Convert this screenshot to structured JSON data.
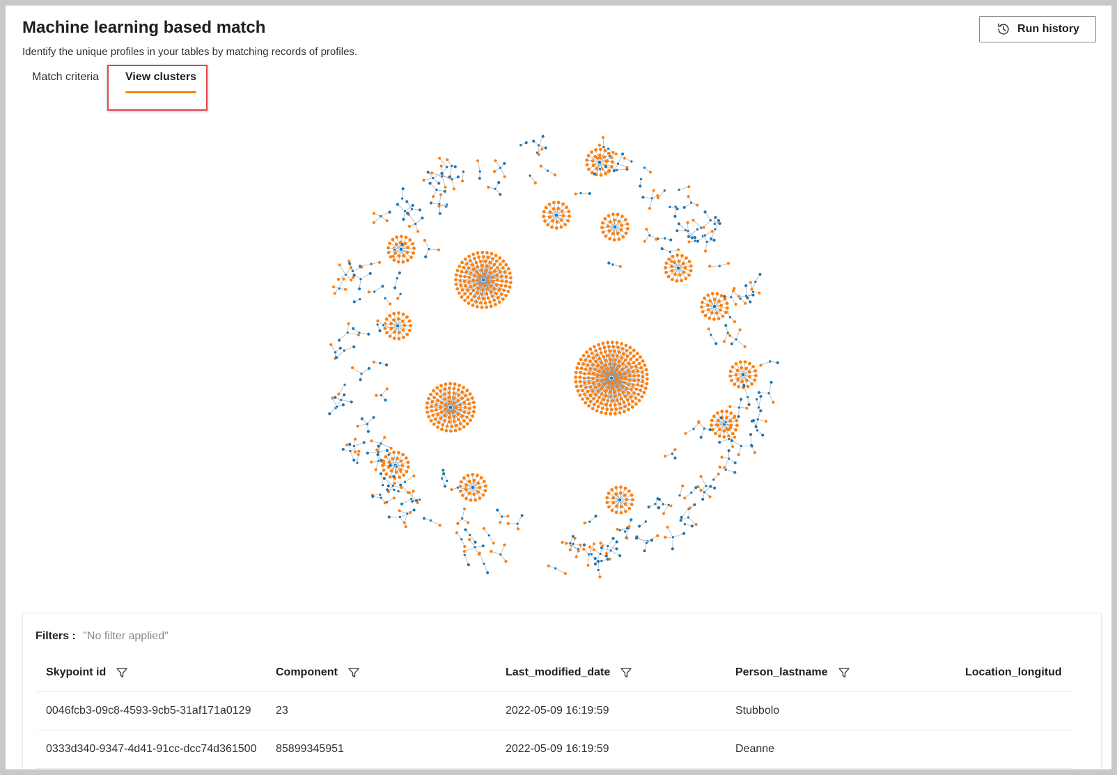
{
  "header": {
    "title": "Machine learning based match",
    "subtitle": "Identify the unique profiles in your tables by matching records of profiles.",
    "run_history_label": "Run history"
  },
  "tabs": [
    {
      "label": "Match criteria",
      "active": false
    },
    {
      "label": "View clusters",
      "active": true
    }
  ],
  "colors": {
    "accent": "#f28705",
    "cluster_center": "#1f77b4",
    "cluster_member": "#ff7f0e",
    "edge": "#9a9a9a",
    "highlight": "#e0474c"
  },
  "icons": {
    "run_history": "history-clock-icon",
    "column_filter": "funnel-filter-icon"
  },
  "filters": {
    "label": "Filters :",
    "value": "\"No filter applied\""
  },
  "table": {
    "columns": [
      "Skypoint id",
      "Component",
      "Last_modified_date",
      "Person_lastname",
      "Location_longitud"
    ],
    "rows": [
      [
        "0046fcb3-09c8-4593-9cb5-31af171a0129",
        "23",
        "2022-05-09 16:19:59",
        "Stubbolo",
        ""
      ],
      [
        "0333d340-9347-4d41-91cc-dcc74d361500",
        "85899345951",
        "2022-05-09 16:19:59",
        "Deanne",
        ""
      ]
    ]
  }
}
